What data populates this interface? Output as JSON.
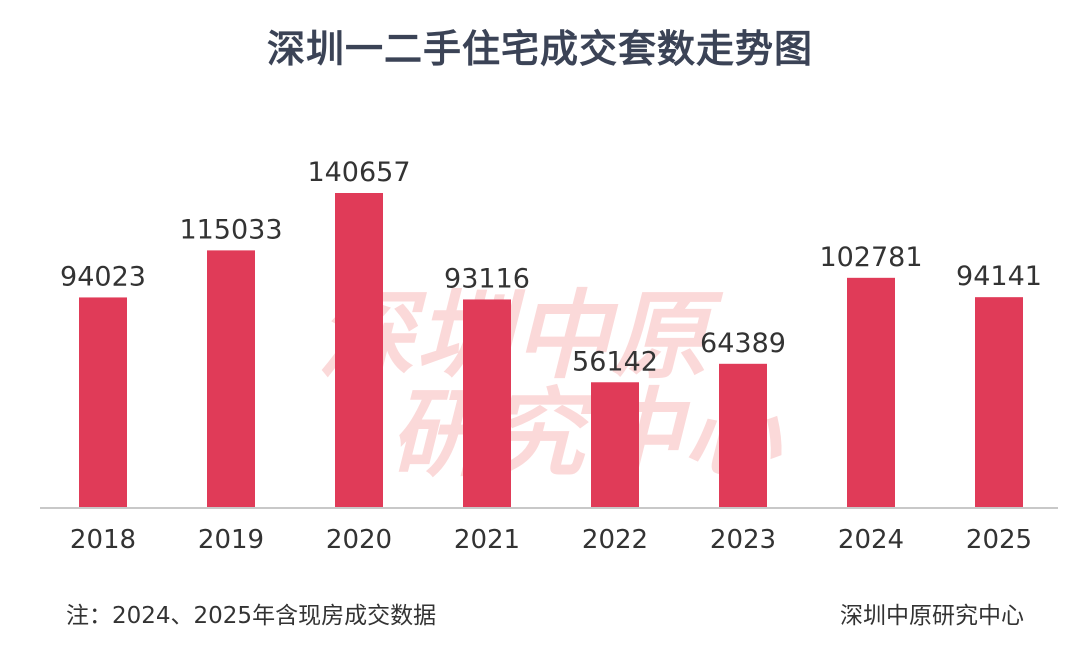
{
  "chart_data": {
    "type": "bar",
    "title": "深圳一二手住宅成交套数走势图",
    "categories": [
      "2018",
      "2019",
      "2020",
      "2021",
      "2022",
      "2023",
      "2024",
      "2025"
    ],
    "values": [
      94023,
      115033,
      140657,
      93116,
      56142,
      64389,
      102781,
      94141
    ],
    "ylim": [
      0,
      150000
    ],
    "grid": false,
    "bar_color": "#e03b58"
  },
  "watermark": {
    "line1": "深圳中原",
    "line2": "研究中心"
  },
  "footnote_left": "注：2024、2025年含现房成交数据",
  "footnote_right": "深圳中原研究中心"
}
